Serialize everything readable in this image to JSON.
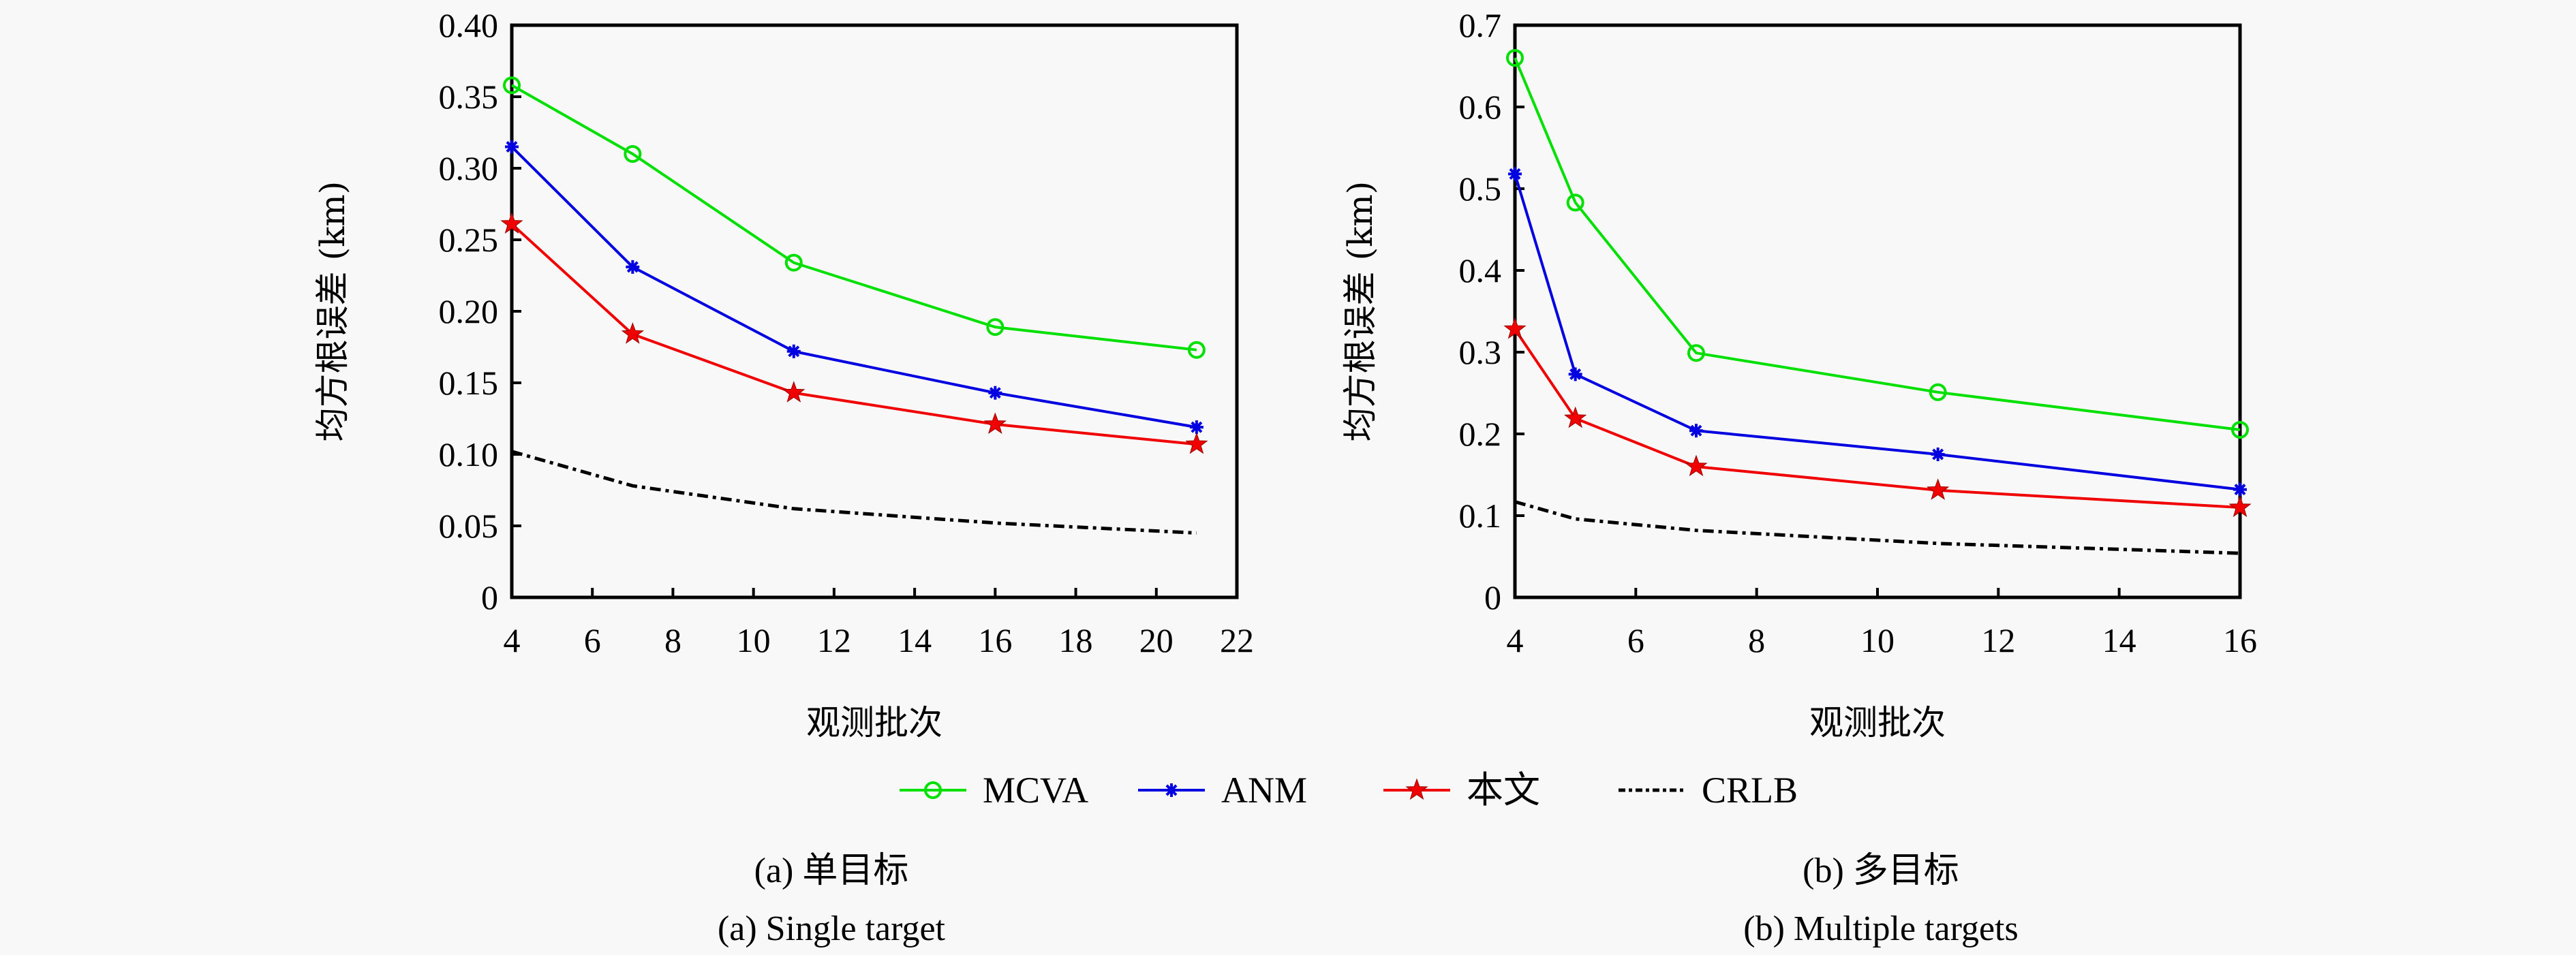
{
  "legend": {
    "placement": "bottom-center",
    "entries": [
      {
        "name": "MCVA",
        "color": "#00e000",
        "marker": "circle",
        "dash": "solid"
      },
      {
        "name": "ANM",
        "color": "#0000e0",
        "marker": "asterisk",
        "dash": "solid"
      },
      {
        "name": "本文",
        "color": "#f00000",
        "marker": "star",
        "dash": "solid"
      },
      {
        "name": "CRLB",
        "color": "#000000",
        "marker": "none",
        "dash": "dash-dot"
      }
    ]
  },
  "chart_data": [
    {
      "type": "line",
      "panel": "a",
      "caption_cn": "(a) 单目标",
      "caption_en": "(a) Single target",
      "title": "",
      "xlabel": "观测批次",
      "ylabel": "均方根误差 (km)",
      "xlim": [
        4,
        22
      ],
      "ylim": [
        0,
        0.4
      ],
      "xticks": [
        4,
        6,
        8,
        10,
        12,
        14,
        16,
        18,
        20,
        22
      ],
      "xtick_labels": [
        "4",
        "6",
        "8",
        "10",
        "12",
        "14",
        "16",
        "18",
        "20",
        "22"
      ],
      "yticks": [
        0,
        0.05,
        0.1,
        0.15,
        0.2,
        0.25,
        0.3,
        0.35,
        0.4
      ],
      "ytick_labels": [
        "0",
        "0.05",
        "0.10",
        "0.15",
        "0.20",
        "0.25",
        "0.30",
        "0.35",
        "0.40"
      ],
      "grid": false,
      "x": [
        4,
        7,
        11,
        16,
        21
      ],
      "series": [
        {
          "name": "MCVA",
          "values": [
            0.358,
            0.31,
            0.234,
            0.189,
            0.173
          ]
        },
        {
          "name": "ANM",
          "values": [
            0.315,
            0.231,
            0.172,
            0.143,
            0.119
          ]
        },
        {
          "name": "本文",
          "values": [
            0.261,
            0.184,
            0.143,
            0.121,
            0.107
          ]
        },
        {
          "name": "CRLB",
          "values": [
            0.102,
            0.078,
            0.062,
            0.052,
            0.045
          ]
        }
      ]
    },
    {
      "type": "line",
      "panel": "b",
      "caption_cn": "(b) 多目标",
      "caption_en": "(b) Multiple targets",
      "title": "",
      "xlabel": "观测批次",
      "ylabel": "均方根误差 (km)",
      "xlim": [
        4,
        16
      ],
      "ylim": [
        0,
        0.7
      ],
      "xticks": [
        4,
        6,
        8,
        10,
        12,
        14,
        16
      ],
      "xtick_labels": [
        "4",
        "6",
        "8",
        "10",
        "12",
        "14",
        "16"
      ],
      "yticks": [
        0,
        0.1,
        0.2,
        0.3,
        0.4,
        0.5,
        0.6,
        0.7
      ],
      "ytick_labels": [
        "0",
        "0.1",
        "0.2",
        "0.3",
        "0.4",
        "0.5",
        "0.6",
        "0.7"
      ],
      "grid": false,
      "x": [
        4,
        5,
        7,
        11,
        16
      ],
      "series": [
        {
          "name": "MCVA",
          "values": [
            0.66,
            0.483,
            0.299,
            0.251,
            0.205
          ]
        },
        {
          "name": "ANM",
          "values": [
            0.518,
            0.273,
            0.204,
            0.175,
            0.132
          ]
        },
        {
          "name": "本文",
          "values": [
            0.328,
            0.219,
            0.16,
            0.131,
            0.11
          ]
        },
        {
          "name": "CRLB",
          "values": [
            0.117,
            0.096,
            0.082,
            0.066,
            0.054
          ]
        }
      ]
    }
  ]
}
